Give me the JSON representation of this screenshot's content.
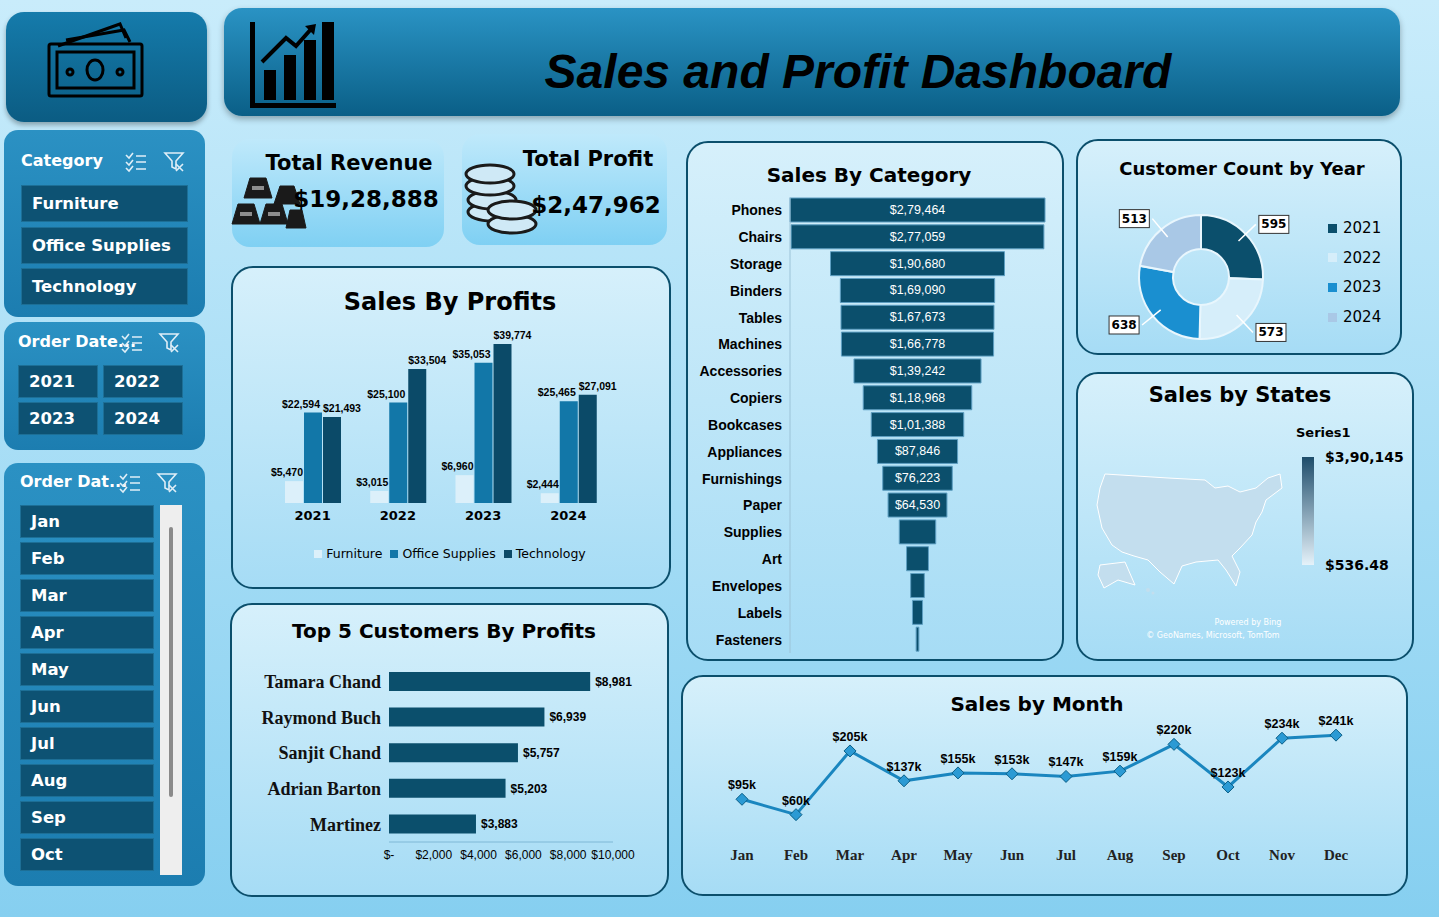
{
  "title": "Sales and Profit Dashboard",
  "kpis": [
    {
      "label": "Total Revenue",
      "value": "$19,28,888"
    },
    {
      "label": "Total Profit",
      "value": "$2,47,962"
    }
  ],
  "slicers": [
    {
      "title": "Category",
      "items": [
        "Furniture",
        "Office Supplies",
        "Technology"
      ]
    },
    {
      "title": "Order Date...",
      "items": [
        "2021",
        "2022",
        "2023",
        "2024"
      ]
    },
    {
      "title": "Order Dat...",
      "items": [
        "Jan",
        "Feb",
        "Mar",
        "Apr",
        "May",
        "Jun",
        "Jul",
        "Aug",
        "Sep",
        "Oct"
      ]
    }
  ],
  "chart_data": [
    {
      "type": "bar",
      "title": "Sales By Profits",
      "categories": [
        "2021",
        "2022",
        "2023",
        "2024"
      ],
      "series": [
        {
          "name": "Furniture",
          "color": "#dcf0fa",
          "values": [
            5470,
            3015,
            6960,
            2444
          ],
          "value_labels": [
            "$5,470",
            "$3,015",
            "$6,960",
            "$2,444"
          ]
        },
        {
          "name": "Office Supplies",
          "color": "#1277a8",
          "values": [
            22594,
            25100,
            35053,
            25465
          ],
          "value_labels": [
            "$22,594",
            "$25,100",
            "$35,053",
            "$25,465"
          ]
        },
        {
          "name": "Technology",
          "color": "#0b4a68",
          "values": [
            21493,
            33504,
            39774,
            27091
          ],
          "value_labels": [
            "$21,493",
            "$33,504",
            "$39,774",
            "$27,091"
          ]
        }
      ],
      "ylim": [
        0,
        40000
      ],
      "data_labels": true,
      "tick_labels": "x",
      "legend": "bottom",
      "grid": false
    },
    {
      "type": "funnel",
      "title": "Sales By Category",
      "orientation": "horizontal",
      "categories": [
        "Phones",
        "Chairs",
        "Storage",
        "Binders",
        "Tables",
        "Machines",
        "Accessories",
        "Copiers",
        "Bookcases",
        "Appliances",
        "Furnishings",
        "Paper",
        "Supplies",
        "Art",
        "Envelopes",
        "Labels",
        "Fasteners"
      ],
      "values": [
        279464,
        277059,
        190680,
        169090,
        167673,
        166778,
        139242,
        118968,
        101388,
        87846,
        76223,
        64530,
        40000,
        24000,
        15000,
        11000,
        3000
      ],
      "value_labels": [
        "$2,79,464",
        "$2,77,059",
        "$1,90,680",
        "$1,69,090",
        "$1,67,673",
        "$1,66,778",
        "$1,39,242",
        "$1,18,968",
        "$1,01,388",
        "$87,846",
        "$76,223",
        "$64,530",
        null,
        null,
        null,
        null,
        null
      ],
      "color": "#0b4f6c",
      "data_labels": true,
      "tick_labels": "y",
      "grid": false
    },
    {
      "type": "pie",
      "title": "Customer Count by Year",
      "categories": [
        "2021",
        "2022",
        "2023",
        "2024"
      ],
      "values": [
        595,
        573,
        638,
        513
      ],
      "colors": [
        "#0b4f6c",
        "#d6eefa",
        "#1a8fd0",
        "#a9c8e6"
      ],
      "data_labels": true,
      "legend": "right"
    },
    {
      "type": "map",
      "title": "Sales by States",
      "legend_title": "Series1",
      "colorbar": {
        "range": [
          536.48,
          390145
        ],
        "ticks": [
          {
            "value": 536.48,
            "label": "$536.48"
          },
          {
            "value": 390145,
            "label": "$3,90,145"
          }
        ]
      },
      "annotations": [
        "Powered by Bing",
        "© GeoNames, Microsoft, TomTom"
      ]
    },
    {
      "type": "bar",
      "title": "Top 5 Customers By Profits",
      "orientation": "horizontal",
      "categories": [
        "Tamara Chand",
        "Raymond Buch",
        "Sanjit Chand",
        "Adrian Barton",
        "Martinez"
      ],
      "values": [
        8981,
        6939,
        5757,
        5203,
        3883
      ],
      "value_labels": [
        "$8,981",
        "$6,939",
        "$5,757",
        "$5,203",
        "$3,883"
      ],
      "color": "#0b4f6c",
      "xlim": [
        0,
        10000
      ],
      "xticks": [
        {
          "value": 0,
          "label": "$-"
        },
        {
          "value": 2000,
          "label": "$2,000"
        },
        {
          "value": 4000,
          "label": "$4,000"
        },
        {
          "value": 6000,
          "label": "$6,000"
        },
        {
          "value": 8000,
          "label": "$8,000"
        },
        {
          "value": 10000,
          "label": "$10,000"
        }
      ],
      "data_labels": true,
      "grid": false
    },
    {
      "type": "line",
      "title": "Sales by Month",
      "categories": [
        "Jan",
        "Feb",
        "Mar",
        "Apr",
        "May",
        "Jun",
        "Jul",
        "Aug",
        "Sep",
        "Oct",
        "Nov",
        "Dec"
      ],
      "values": [
        95000,
        60000,
        205000,
        137000,
        155000,
        153000,
        147000,
        159000,
        220000,
        123000,
        234000,
        241000
      ],
      "value_labels": [
        "$95k",
        "$60k",
        "$205k",
        "$137k",
        "$155k",
        "$153k",
        "$147k",
        "$159k",
        "$220k",
        "$123k",
        "$234k",
        "$241k"
      ],
      "color": "#1a86bf",
      "marker": "diamond",
      "ylim": [
        0,
        280000
      ],
      "data_labels": true,
      "tick_labels": "x",
      "grid": false
    }
  ]
}
